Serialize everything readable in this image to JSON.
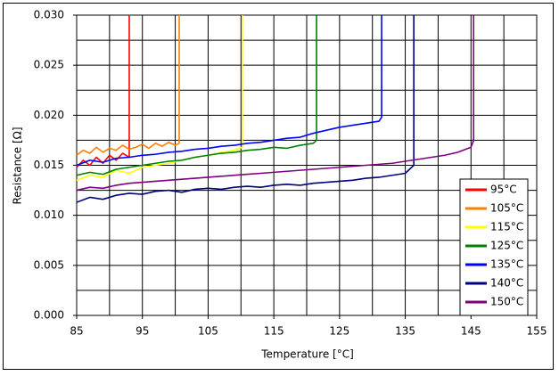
{
  "chart_data": {
    "type": "line",
    "xlabel": "Temperature [°C]",
    "ylabel": "Resistance [Ω]",
    "xlim": [
      85,
      155
    ],
    "xticks": [
      85,
      95,
      105,
      115,
      125,
      135,
      145,
      155
    ],
    "ylim": [
      0,
      0.03
    ],
    "yticks": [
      {
        "value": 0,
        "label": "0.000"
      },
      {
        "value": 0.005,
        "label": "0.005"
      },
      {
        "value": 0.01,
        "label": "0.010"
      },
      {
        "value": 0.015,
        "label": "0.015"
      },
      {
        "value": 0.02,
        "label": "0.020"
      },
      {
        "value": 0.025,
        "label": "0.025"
      },
      {
        "value": 0.03,
        "label": "0.030"
      }
    ],
    "xgrid": [
      85,
      90,
      95,
      100,
      105,
      110,
      115,
      120,
      125,
      130,
      135,
      140,
      145,
      150,
      155
    ],
    "ygrid": [
      0,
      0.0025,
      0.005,
      0.0075,
      0.01,
      0.0125,
      0.015,
      0.0175,
      0.02,
      0.0225,
      0.025,
      0.0275,
      0.03
    ],
    "grid": true,
    "legend": "right",
    "series": [
      {
        "name": "95°C",
        "color": "#ff0000",
        "x": [
          85,
          86,
          87,
          88,
          89,
          90,
          91,
          92,
          93,
          93
        ],
        "values": [
          0.0148,
          0.0155,
          0.015,
          0.0158,
          0.0152,
          0.016,
          0.0155,
          0.0162,
          0.0158,
          0.03
        ]
      },
      {
        "name": "105°C",
        "color": "#ff7f00",
        "x": [
          85,
          86,
          87,
          88,
          89,
          90,
          91,
          92,
          93,
          94,
          95,
          96,
          97,
          98,
          99,
          100,
          100.6,
          100.6
        ],
        "values": [
          0.016,
          0.0165,
          0.0162,
          0.0168,
          0.0163,
          0.0167,
          0.0165,
          0.017,
          0.0166,
          0.0168,
          0.0171,
          0.0167,
          0.0172,
          0.0169,
          0.0173,
          0.017,
          0.0172,
          0.03
        ]
      },
      {
        "name": "115°C",
        "color": "#ffff00",
        "x": [
          85,
          87,
          89,
          91,
          93,
          95,
          97,
          99,
          101,
          103,
          105,
          107,
          109,
          110.2,
          110.2
        ],
        "values": [
          0.0135,
          0.014,
          0.0138,
          0.0145,
          0.0142,
          0.0148,
          0.015,
          0.0152,
          0.0155,
          0.0158,
          0.016,
          0.0163,
          0.0165,
          0.0168,
          0.03
        ]
      },
      {
        "name": "125°C",
        "color": "#008000",
        "x": [
          85,
          87,
          89,
          91,
          93,
          95,
          97,
          99,
          101,
          103,
          105,
          107,
          109,
          111,
          113,
          115,
          117,
          119,
          121,
          121.5,
          121.5
        ],
        "values": [
          0.014,
          0.0143,
          0.0141,
          0.0146,
          0.0148,
          0.015,
          0.0152,
          0.0154,
          0.0155,
          0.0158,
          0.016,
          0.0162,
          0.0163,
          0.0165,
          0.0166,
          0.0168,
          0.0167,
          0.017,
          0.0172,
          0.0175,
          0.03
        ]
      },
      {
        "name": "135°C",
        "color": "#0000ff",
        "x": [
          85,
          87,
          89,
          91,
          93,
          95,
          97,
          99,
          101,
          103,
          105,
          107,
          109,
          111,
          113,
          115,
          117,
          119,
          121,
          123,
          125,
          127,
          129,
          131,
          131.4,
          131.4
        ],
        "values": [
          0.015,
          0.0155,
          0.0153,
          0.0157,
          0.0158,
          0.016,
          0.0161,
          0.0163,
          0.0164,
          0.0166,
          0.0167,
          0.0169,
          0.017,
          0.0172,
          0.0173,
          0.0175,
          0.0177,
          0.0178,
          0.0182,
          0.0185,
          0.0188,
          0.019,
          0.0192,
          0.0194,
          0.0198,
          0.03
        ]
      },
      {
        "name": "140°C",
        "color": "#000080",
        "x": [
          85,
          87,
          89,
          91,
          93,
          95,
          97,
          99,
          101,
          103,
          105,
          107,
          109,
          111,
          113,
          115,
          117,
          119,
          121,
          123,
          125,
          127,
          129,
          131,
          133,
          135,
          136.3,
          136.3
        ],
        "values": [
          0.0113,
          0.0118,
          0.0116,
          0.012,
          0.0122,
          0.0121,
          0.0124,
          0.0125,
          0.0123,
          0.0126,
          0.0127,
          0.0126,
          0.0128,
          0.0129,
          0.0128,
          0.013,
          0.0131,
          0.013,
          0.0132,
          0.0133,
          0.0134,
          0.0135,
          0.0137,
          0.0138,
          0.014,
          0.0142,
          0.015,
          0.03
        ]
      },
      {
        "name": "150°C",
        "color": "#800080",
        "x": [
          85,
          87,
          89,
          91,
          93,
          95,
          97,
          99,
          101,
          103,
          105,
          107,
          109,
          111,
          113,
          115,
          117,
          119,
          121,
          123,
          125,
          127,
          129,
          131,
          133,
          135,
          137,
          139,
          141,
          143,
          145,
          145.4,
          145.4
        ],
        "values": [
          0.0125,
          0.0128,
          0.0127,
          0.013,
          0.0132,
          0.0133,
          0.0134,
          0.0135,
          0.0136,
          0.0137,
          0.0138,
          0.0139,
          0.014,
          0.0141,
          0.0142,
          0.0143,
          0.0144,
          0.0145,
          0.0146,
          0.0147,
          0.0148,
          0.0149,
          0.015,
          0.0151,
          0.0152,
          0.0154,
          0.0156,
          0.0158,
          0.016,
          0.0163,
          0.0168,
          0.0175,
          0.03
        ]
      }
    ]
  }
}
